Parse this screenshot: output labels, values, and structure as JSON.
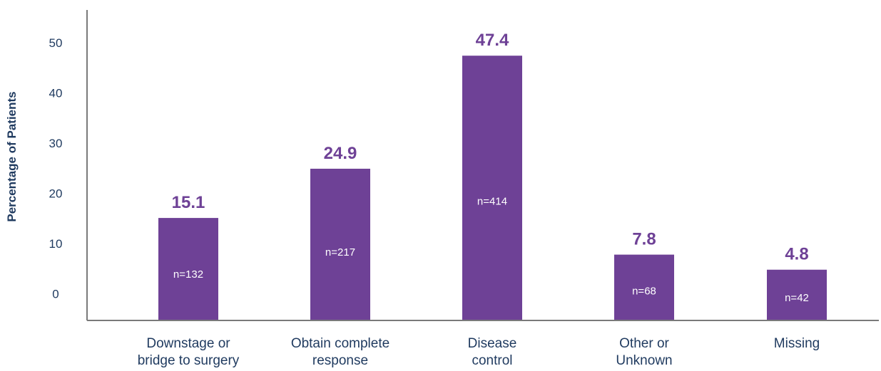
{
  "chart_data": {
    "type": "bar",
    "title": "",
    "ylabel": "Percentage of Patients",
    "xlabel": "",
    "ylim": [
      -5.3,
      56.5
    ],
    "yticks": [
      0,
      10,
      20,
      30,
      40,
      50
    ],
    "tick_labels": [
      "0",
      "10",
      "20",
      "30",
      "40",
      "50"
    ],
    "categories": [
      [
        "Downstage or",
        "bridge to surgery"
      ],
      [
        "Obtain complete",
        "response"
      ],
      [
        "Disease",
        "control"
      ],
      [
        "Other or",
        "Unknown"
      ],
      [
        "Missing"
      ]
    ],
    "values": [
      15.1,
      24.9,
      47.4,
      7.8,
      4.8
    ],
    "value_labels": [
      "15.1",
      "24.9",
      "47.4",
      "7.8",
      "4.8"
    ],
    "n_labels": [
      "n=132",
      "n=217",
      "n=414",
      "n=68",
      "n=42"
    ],
    "grid": false,
    "legend": "none",
    "colors": {
      "bar": "#6e4196",
      "value_text": "#6e4196",
      "axis": "#7a7a7a",
      "text": "#1f3a5f"
    }
  }
}
